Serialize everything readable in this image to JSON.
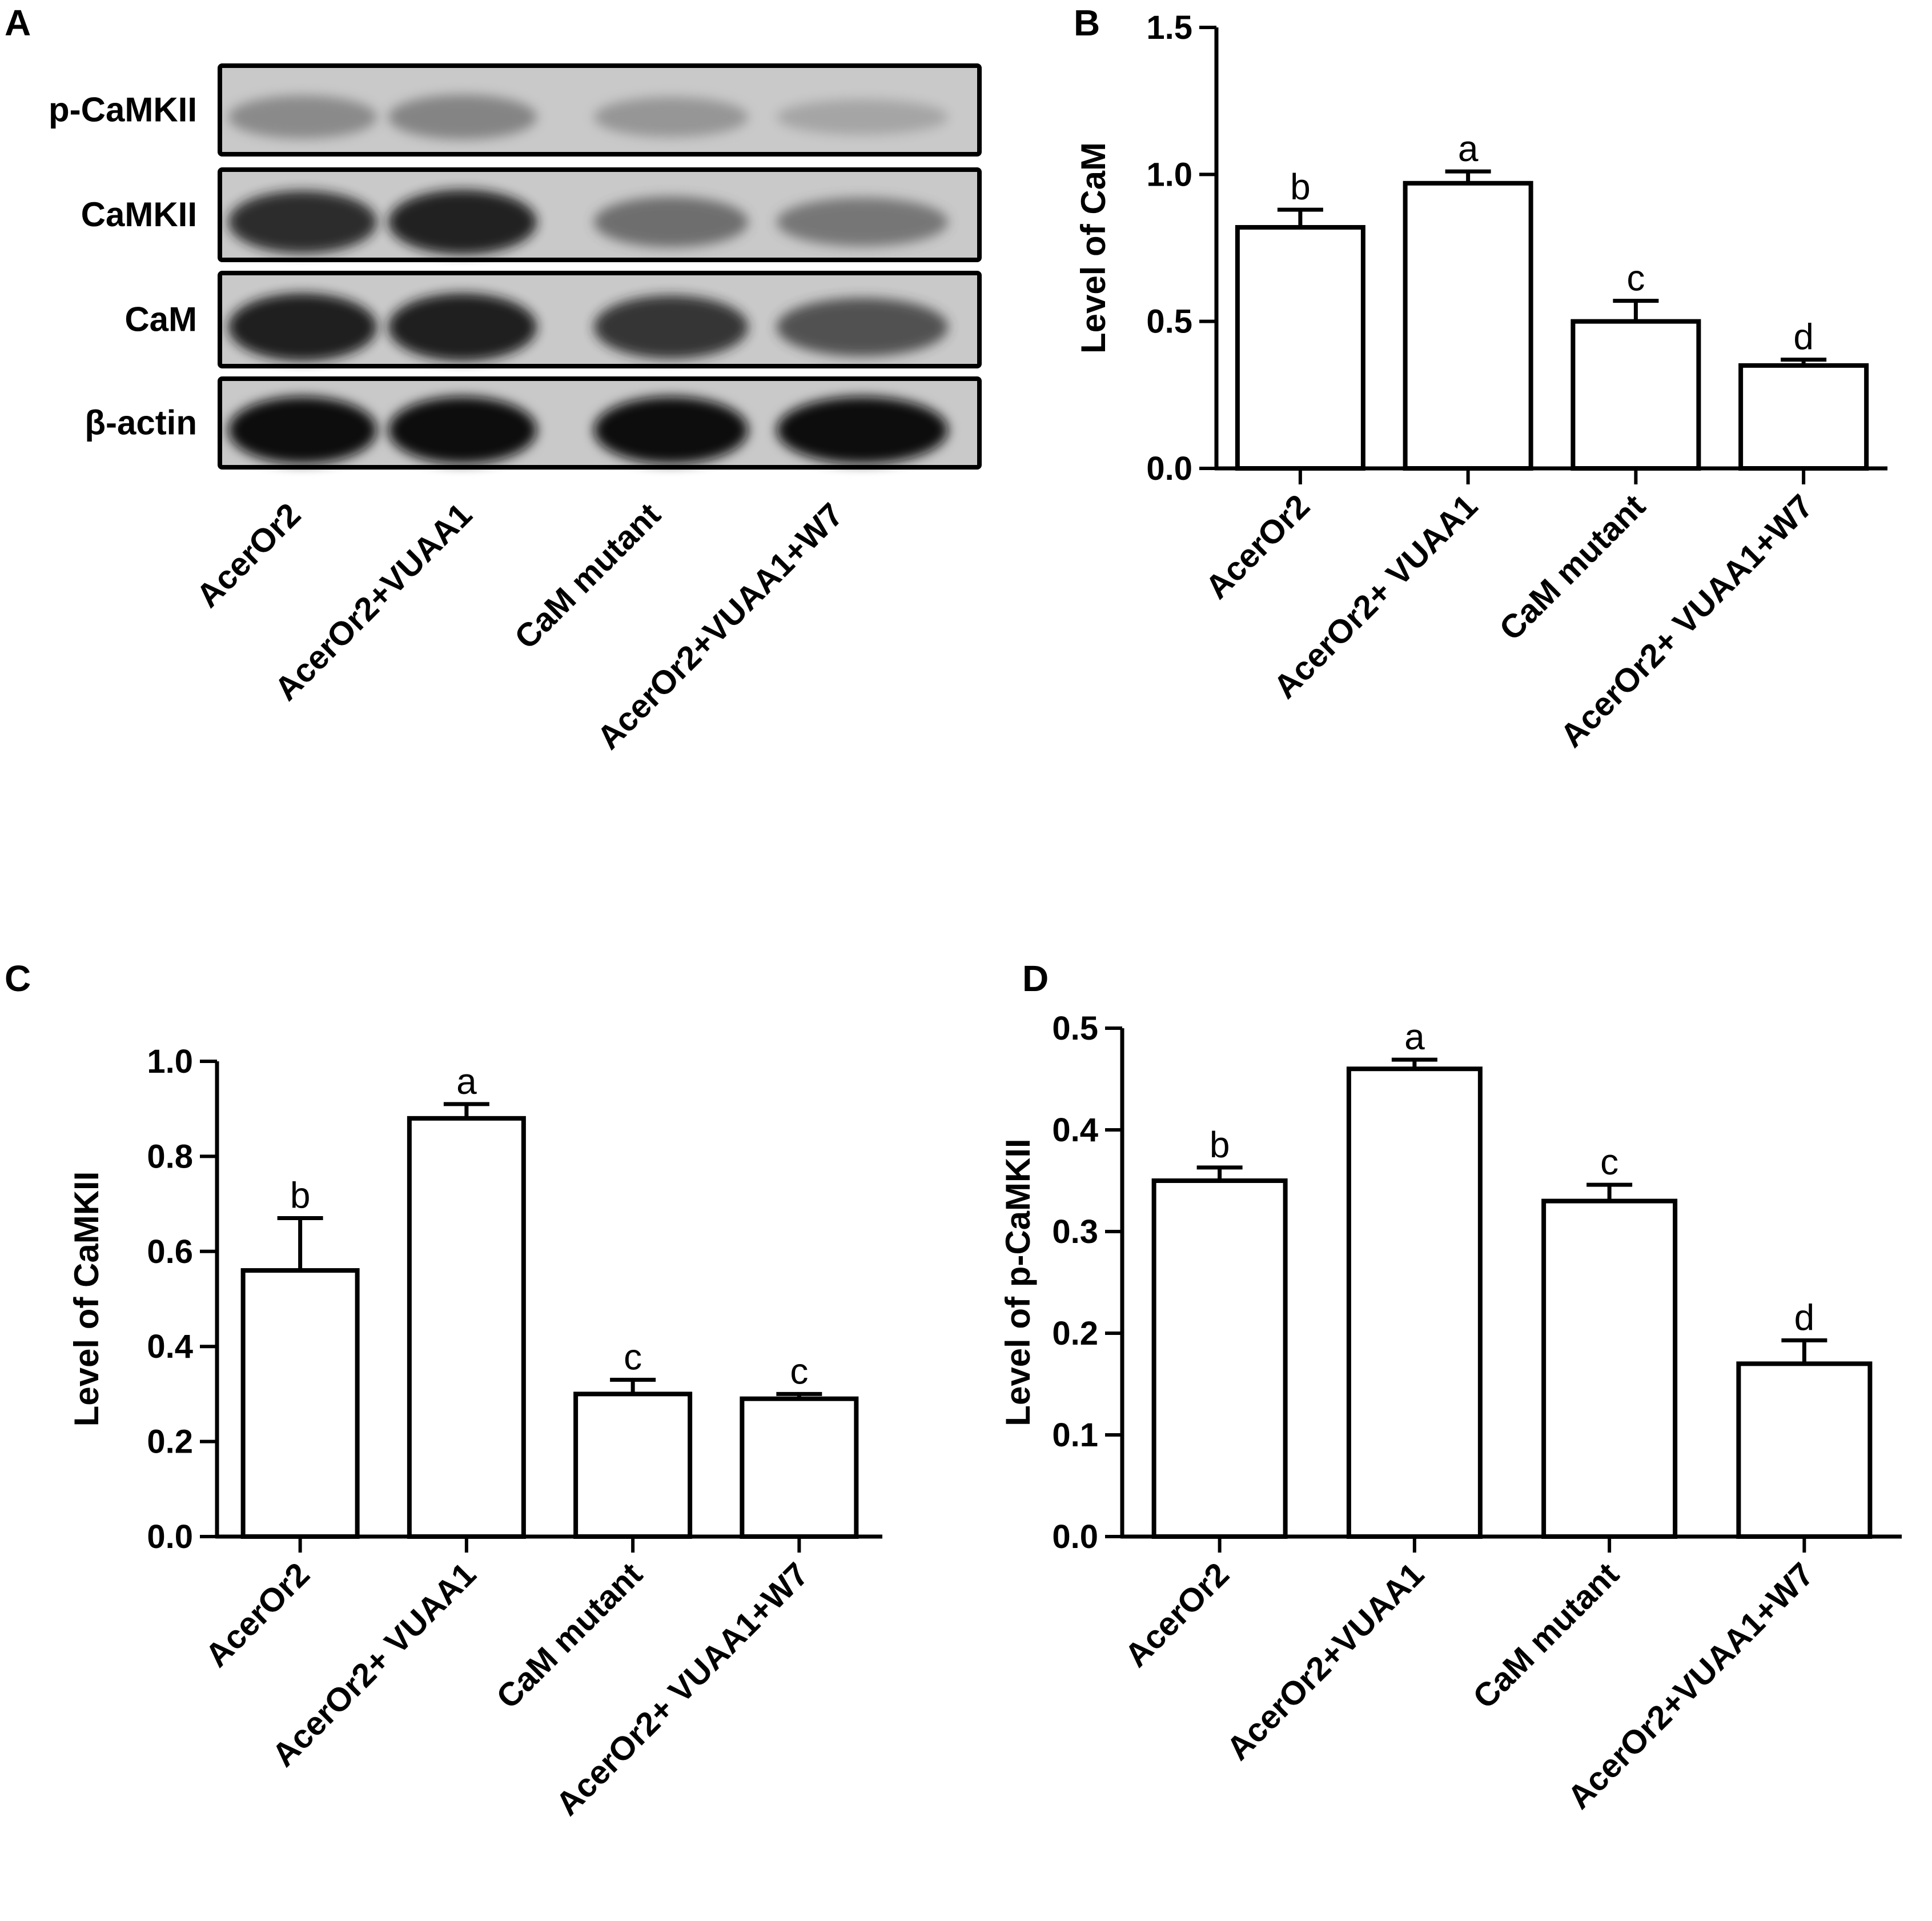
{
  "blot": {
    "letter": "A",
    "rows": [
      "p-CaMKII",
      "CaMKII",
      "CaM",
      "β-actin"
    ],
    "lanes": [
      "AcerOr2",
      "AcerOr2+VUAA1",
      "CaM mutant",
      "AcerOr2+VUAA1+W7"
    ],
    "band_intensity": [
      [
        0.38,
        0.42,
        0.3,
        0.18
      ],
      [
        0.85,
        0.9,
        0.55,
        0.5
      ],
      [
        0.92,
        0.92,
        0.82,
        0.7
      ],
      [
        1.0,
        1.0,
        1.0,
        1.0
      ]
    ]
  },
  "chart_data": [
    {
      "type": "bar",
      "letter": "B",
      "categories": [
        "AcerOr2",
        "AcerOr2+ VUAA1",
        "CaM mutant",
        "AcerOr2+ VUAA1+W7"
      ],
      "values": [
        0.82,
        0.97,
        0.5,
        0.35
      ],
      "errors": [
        0.06,
        0.04,
        0.07,
        0.02
      ],
      "sig_letters": [
        "b",
        "a",
        "c",
        "d"
      ],
      "ylabel": "Level of CaM",
      "ylim": [
        0,
        1.5
      ],
      "yticks": [
        "0.0",
        "0.5",
        "1.0",
        "1.5"
      ],
      "ytick_values": [
        0,
        0.5,
        1.0,
        1.5
      ],
      "grid": false,
      "bar_fill": "#ffffff",
      "bar_stroke": "#000000"
    },
    {
      "type": "bar",
      "letter": "C",
      "categories": [
        "AcerOr2",
        "AcerOr2+ VUAA1",
        "CaM mutant",
        "AcerOr2+ VUAA1+W7"
      ],
      "values": [
        0.56,
        0.88,
        0.3,
        0.29
      ],
      "errors": [
        0.11,
        0.03,
        0.03,
        0.01
      ],
      "sig_letters": [
        "b",
        "a",
        "c",
        "c"
      ],
      "ylabel": "Level of CaMKII",
      "ylim": [
        0,
        1.0
      ],
      "yticks": [
        "0.0",
        "0.2",
        "0.4",
        "0.6",
        "0.8",
        "1.0"
      ],
      "ytick_values": [
        0,
        0.2,
        0.4,
        0.6,
        0.8,
        1.0
      ],
      "grid": false,
      "bar_fill": "#ffffff",
      "bar_stroke": "#000000"
    },
    {
      "type": "bar",
      "letter": "D",
      "categories": [
        "AcerOr2",
        "AcerOr2+VUAA1",
        "CaM mutant",
        "AcerOr2+VUAA1+W7"
      ],
      "values": [
        0.35,
        0.46,
        0.33,
        0.17
      ],
      "errors": [
        0.013,
        0.009,
        0.016,
        0.023
      ],
      "sig_letters": [
        "b",
        "a",
        "c",
        "d"
      ],
      "ylabel": "Level of p-CaMKII",
      "ylim": [
        0,
        0.5
      ],
      "yticks": [
        "0.0",
        "0.1",
        "0.2",
        "0.3",
        "0.4",
        "0.5"
      ],
      "ytick_values": [
        0,
        0.1,
        0.2,
        0.3,
        0.4,
        0.5
      ],
      "grid": false,
      "bar_fill": "#ffffff",
      "bar_stroke": "#000000"
    }
  ]
}
